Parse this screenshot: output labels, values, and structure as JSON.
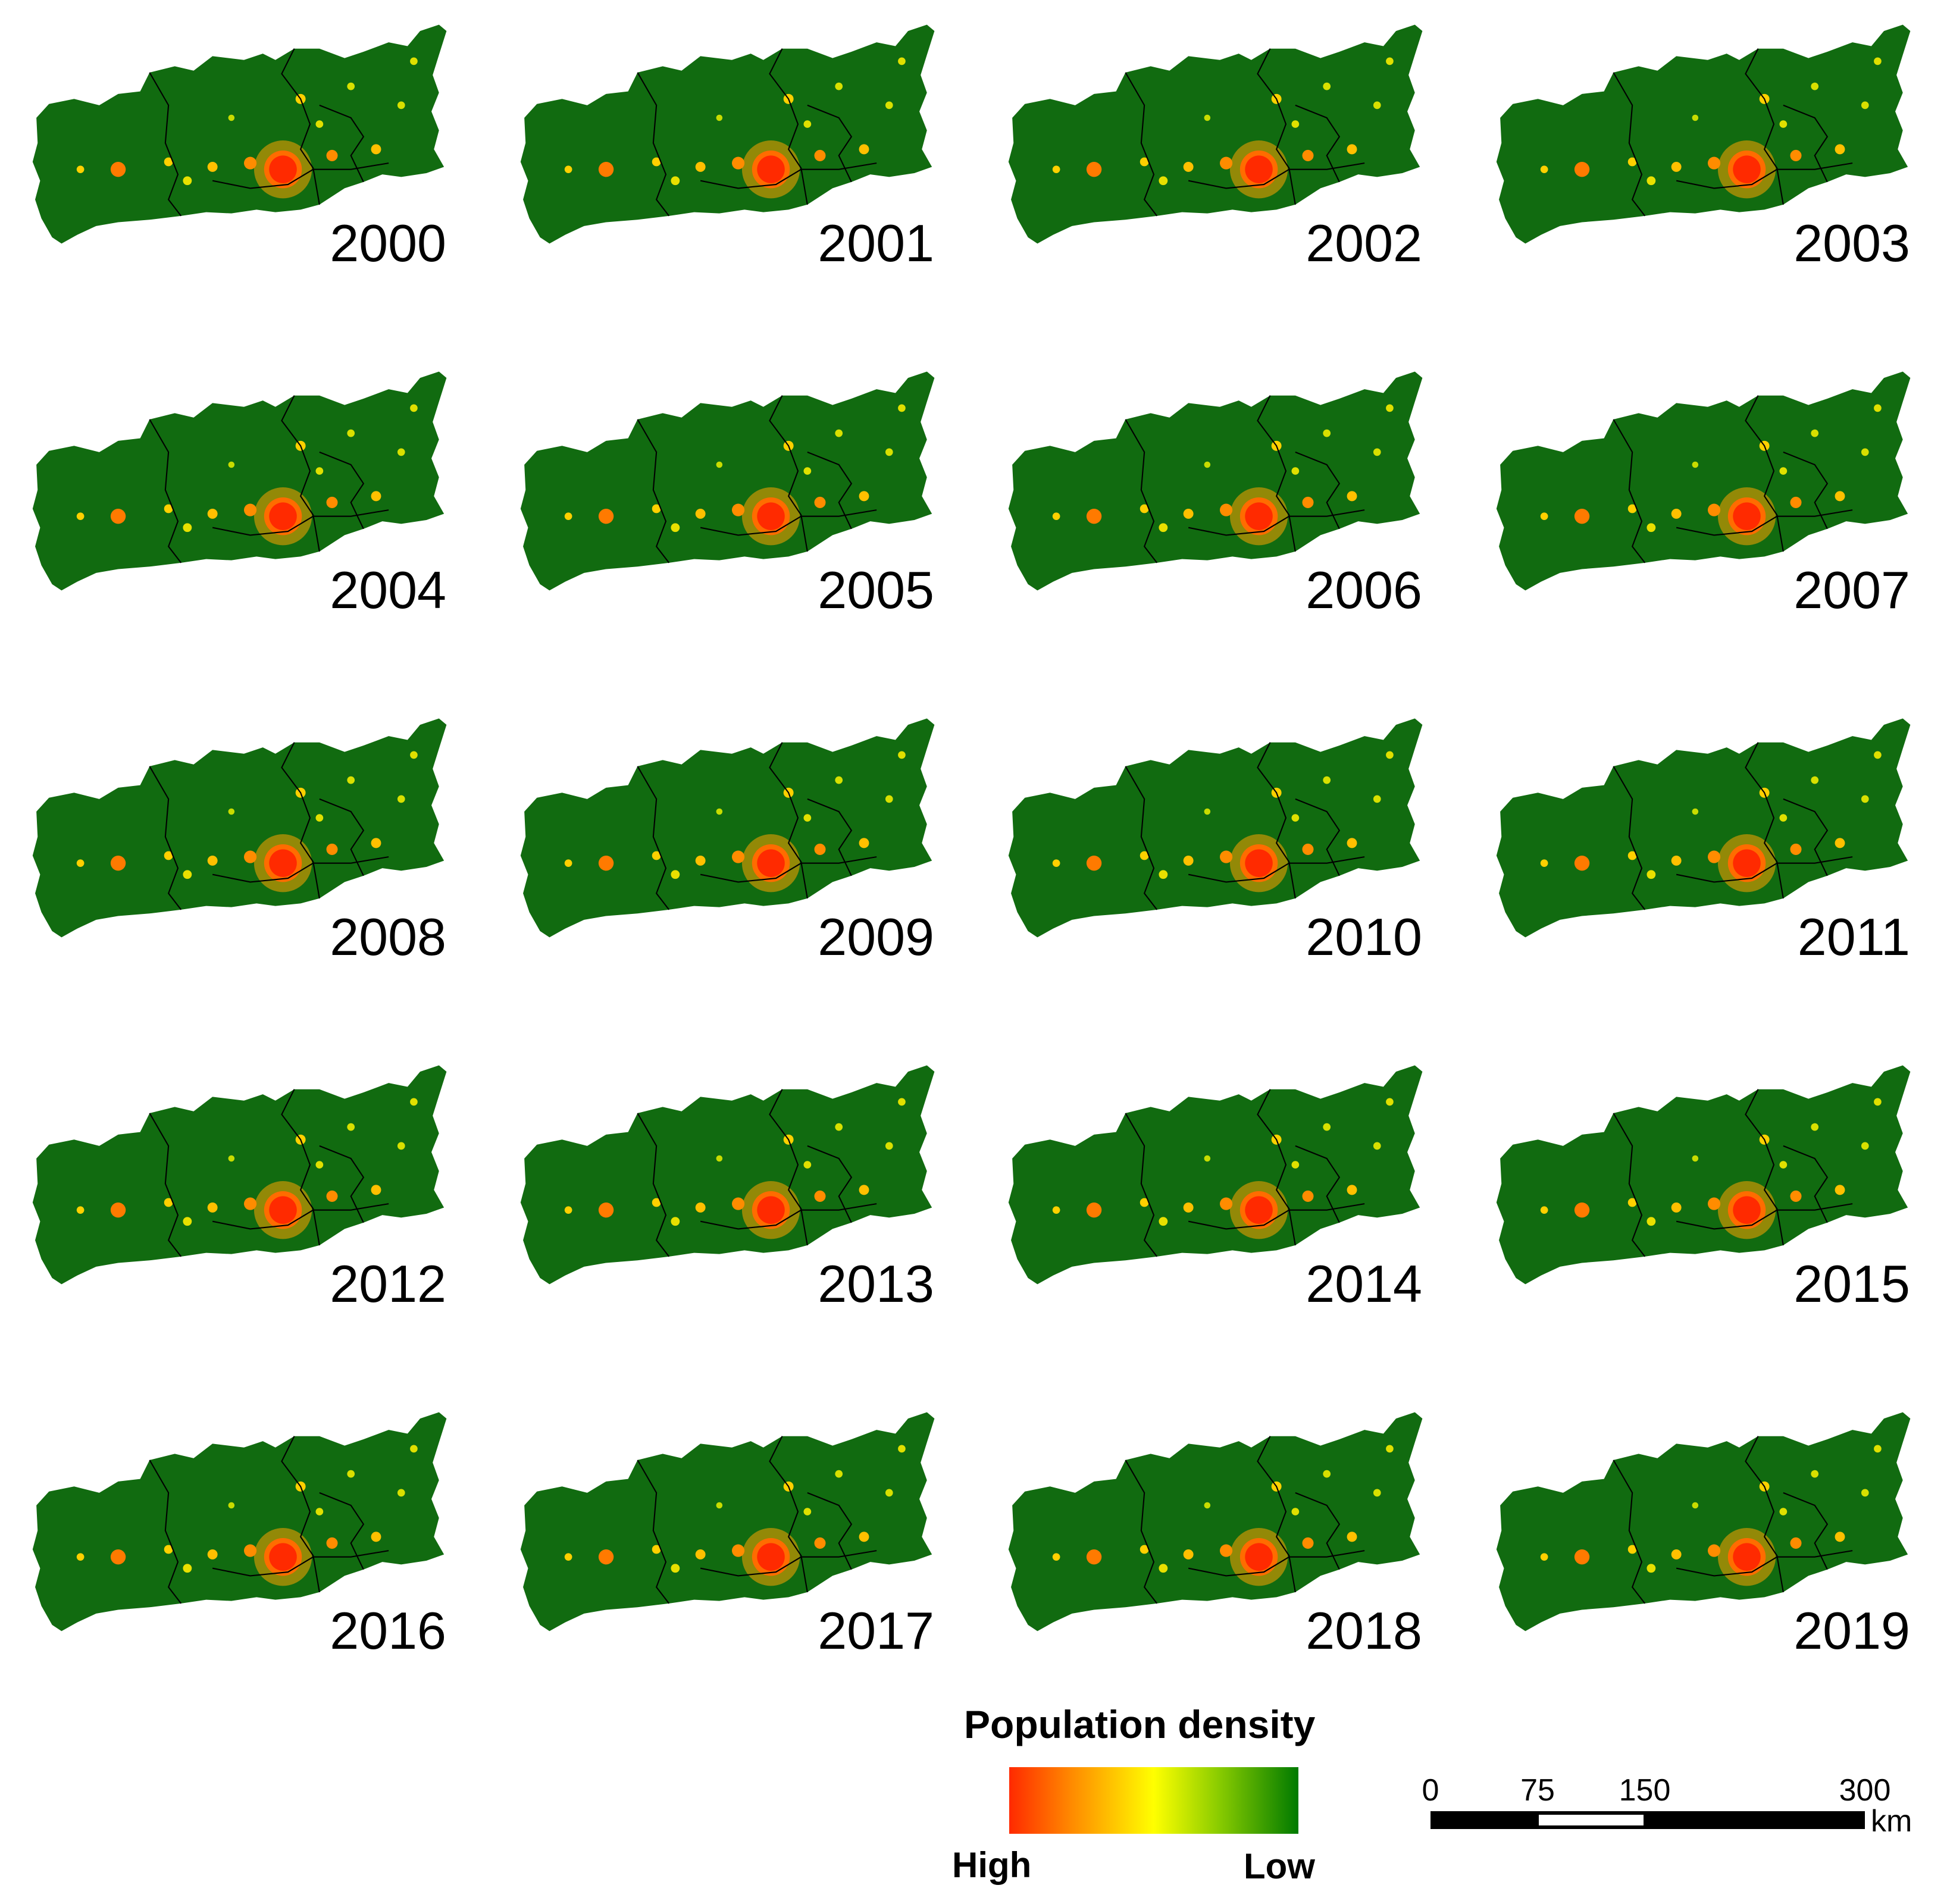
{
  "panels": [
    {
      "year": "2000"
    },
    {
      "year": "2001"
    },
    {
      "year": "2002"
    },
    {
      "year": "2003"
    },
    {
      "year": "2004"
    },
    {
      "year": "2005"
    },
    {
      "year": "2006"
    },
    {
      "year": "2007"
    },
    {
      "year": "2008"
    },
    {
      "year": "2009"
    },
    {
      "year": "2010"
    },
    {
      "year": "2011"
    },
    {
      "year": "2012"
    },
    {
      "year": "2013"
    },
    {
      "year": "2014"
    },
    {
      "year": "2015"
    },
    {
      "year": "2016"
    },
    {
      "year": "2017"
    },
    {
      "year": "2018"
    },
    {
      "year": "2019"
    }
  ],
  "legend": {
    "title": "Population density",
    "high_label": "High",
    "low_label": "Low",
    "colors": [
      "#ff2a00",
      "#ff8c00",
      "#ffff00",
      "#8ccd00",
      "#007a00"
    ]
  },
  "scale_bar": {
    "ticks": [
      "0",
      "75",
      "150",
      "300"
    ],
    "unit": "km"
  },
  "colors": {
    "region_fill": "#116b10",
    "boundary": "#000000",
    "urban_core": "#ff2a00"
  }
}
